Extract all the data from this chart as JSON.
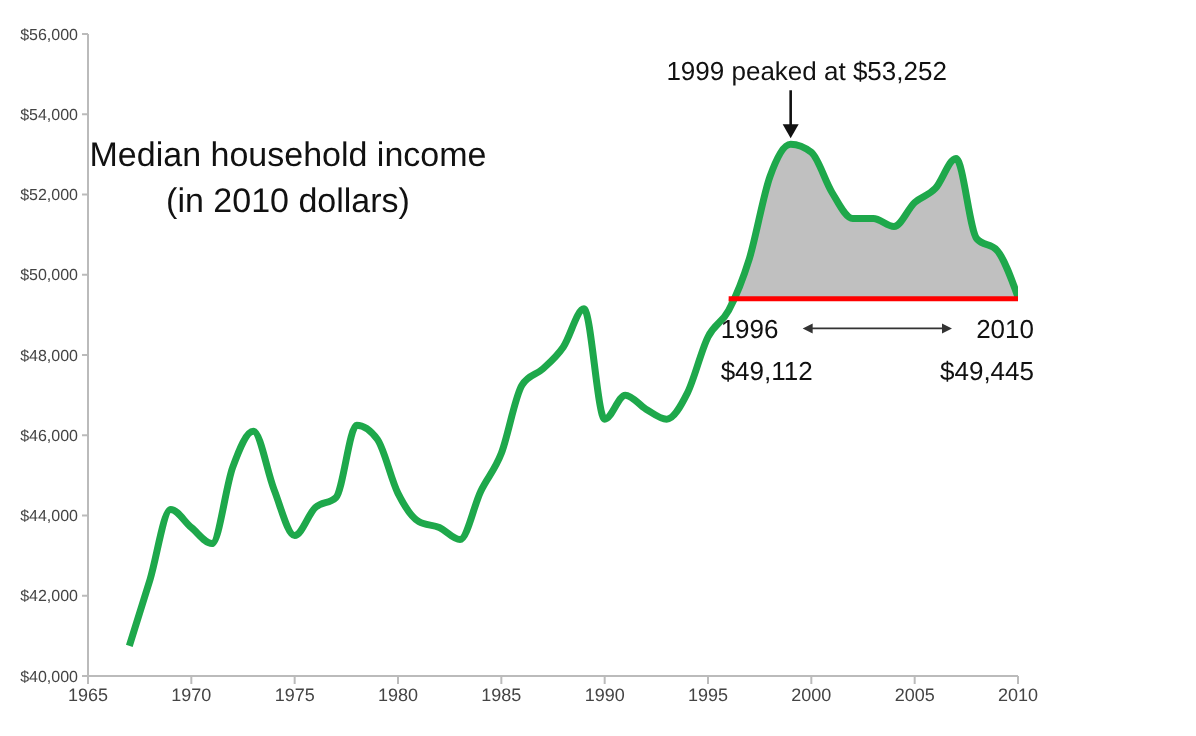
{
  "chart_data": {
    "type": "line",
    "title": "Median household income",
    "subtitle": "(in 2010 dollars)",
    "x": [
      1967,
      1968,
      1969,
      1970,
      1971,
      1972,
      1973,
      1974,
      1975,
      1976,
      1977,
      1978,
      1979,
      1980,
      1981,
      1982,
      1983,
      1984,
      1985,
      1986,
      1987,
      1988,
      1989,
      1990,
      1991,
      1992,
      1993,
      1994,
      1995,
      1996,
      1997,
      1998,
      1999,
      2000,
      2001,
      2002,
      2003,
      2004,
      2005,
      2006,
      2007,
      2008,
      2009,
      2010
    ],
    "series": [
      {
        "type": "area",
        "color": "#c0c0c0",
        "x": [
          1996,
          1997,
          1998,
          1999,
          2000,
          2001,
          2002,
          2003,
          2004,
          2005,
          2006,
          2007,
          2008,
          2009,
          2010
        ],
        "values": [
          49112,
          50400,
          52450,
          53252,
          53050,
          52050,
          51400,
          51400,
          51200,
          51800,
          52150,
          52900,
          50900,
          50600,
          49445
        ]
      },
      {
        "type": "line",
        "color": "#ff0000",
        "x": [
          1996,
          1997,
          1998,
          1999,
          2000,
          2001,
          2002,
          2003,
          2004,
          2005,
          2006,
          2007,
          2008,
          2009,
          2010
        ],
        "values": [
          49400,
          49400,
          49400,
          49400,
          49400,
          49400,
          49400,
          49400,
          49400,
          49400,
          49400,
          49400,
          49400,
          49400,
          49400
        ]
      },
      {
        "color": "#1ea84b",
        "values": [
          40750,
          42400,
          44150,
          43700,
          43300,
          45200,
          46100,
          44650,
          43500,
          44200,
          44450,
          46250,
          45900,
          44550,
          43850,
          43700,
          43400,
          44600,
          45550,
          47250,
          47650,
          48200,
          49150,
          46400,
          47000,
          46650,
          46400,
          47050,
          48450,
          49112,
          50400,
          52450,
          53252,
          53050,
          52050,
          51400,
          51400,
          51200,
          51800,
          52150,
          52900,
          50900,
          50600,
          49445
        ]
      }
    ],
    "xlim": [
      1965,
      2010
    ],
    "xticks": [
      1965,
      1970,
      1975,
      1980,
      1985,
      1990,
      1995,
      2000,
      2005,
      2010
    ],
    "ylim": [
      40000,
      56000
    ],
    "yticks": [
      {
        "value": 40000,
        "label": "$40,000"
      },
      {
        "value": 42000,
        "label": "$42,000"
      },
      {
        "value": 44000,
        "label": "$44,000"
      },
      {
        "value": 46000,
        "label": "$46,000"
      },
      {
        "value": 48000,
        "label": "$48,000"
      },
      {
        "value": 50000,
        "label": "$50,000"
      },
      {
        "value": 52000,
        "label": "$52,000"
      },
      {
        "value": 54000,
        "label": "$54,000"
      },
      {
        "value": 56000,
        "label": "$56,000"
      }
    ],
    "grid": false,
    "legend": false,
    "marker": "none",
    "line_style": "solid",
    "annotations": [
      {
        "text": "1999 peaked at $53,252",
        "x": 1999,
        "y": 53252
      },
      {
        "text": "1996",
        "x": 1996,
        "y": 49112
      },
      {
        "text": "$49,112",
        "x": 1996,
        "y": 49112
      },
      {
        "text": "2010",
        "x": 2010,
        "y": 49445
      },
      {
        "text": "$49,445",
        "x": 2010,
        "y": 49445
      }
    ]
  }
}
